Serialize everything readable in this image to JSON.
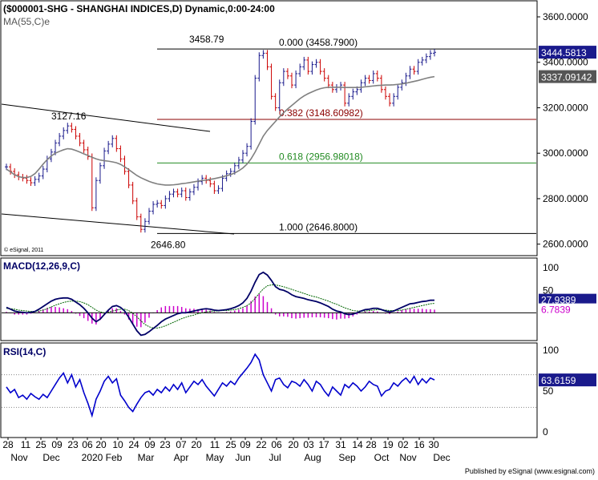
{
  "header": {
    "title": "($000001-SHG - SHANGHAI INDICES,D) Dynamic,0:00-24:00",
    "ma_label": "MA(55,C)e",
    "watermark": "© eSignal, 2011"
  },
  "chart_data": [
    {
      "type": "ohlc",
      "title": "($000001-SHG - SHANGHAI INDICES,D) Dynamic,0:00-24:00",
      "ylim": [
        2560,
        3660
      ],
      "y_ticks": [
        "3600.0000",
        "3400.0000",
        "3200.0000",
        "3000.0000",
        "2800.0000",
        "2600.0000"
      ],
      "y_tick_values": [
        3600,
        3400,
        3200,
        3000,
        2800,
        2600
      ],
      "price_badges": [
        {
          "label": "3444.5813",
          "value": 3444.58,
          "color": "#1a1a8c"
        },
        {
          "label": "3337.09142",
          "value": 3337.09,
          "color": "#555555"
        }
      ],
      "fib_levels": [
        {
          "label": "0.000 (3458.7900)",
          "value": 3458.79,
          "color": "#000000"
        },
        {
          "label": "0.382 (3148.60982)",
          "value": 3148.61,
          "color": "#8b0000"
        },
        {
          "label": "0.618 (2956.98018)",
          "value": 2956.98,
          "color": "#228b22"
        },
        {
          "label": "1.000 (2646.8000)",
          "value": 2646.8,
          "color": "#000000"
        }
      ],
      "annotations": [
        {
          "text": "3458.79",
          "value": 3458.79
        },
        {
          "text": "3127.16",
          "value": 3127.16
        },
        {
          "text": "2646.80",
          "value": 2646.8
        }
      ],
      "series": [
        {
          "name": "SHCOMP close",
          "color_up": "#1a1a8c",
          "color_down": "#cc0000",
          "values": [
            2940,
            2920,
            2905,
            2895,
            2890,
            2880,
            2870,
            2885,
            2900,
            2930,
            2975,
            3005,
            3045,
            3075,
            3100,
            3120,
            3105,
            3075,
            3045,
            3015,
            2985,
            2760,
            2880,
            2945,
            3010,
            3040,
            3065,
            3020,
            2975,
            2920,
            2860,
            2790,
            2720,
            2665,
            2700,
            2745,
            2775,
            2780,
            2770,
            2800,
            2820,
            2830,
            2820,
            2835,
            2805,
            2830,
            2850,
            2875,
            2890,
            2880,
            2865,
            2835,
            2845,
            2890,
            2910,
            2920,
            2945,
            2970,
            3000,
            3030,
            3140,
            3330,
            3430,
            3440,
            3380,
            3250,
            3200,
            3310,
            3360,
            3340,
            3300,
            3350,
            3380,
            3410,
            3360,
            3390,
            3400,
            3360,
            3330,
            3300,
            3280,
            3290,
            3300,
            3220,
            3250,
            3270,
            3280,
            3310,
            3330,
            3320,
            3350,
            3330,
            3280,
            3250,
            3220,
            3250,
            3290,
            3310,
            3340,
            3370,
            3360,
            3400,
            3410,
            3425,
            3440,
            3444
          ]
        },
        {
          "name": "MA(55,C)e",
          "color": "#808080",
          "values": [
            2930,
            2918,
            2905,
            2897,
            2893,
            2893,
            2898,
            2910,
            2930,
            2952,
            2972,
            2988,
            3000,
            3008,
            3015,
            3020,
            3018,
            3012,
            3005,
            2997,
            2990,
            2982,
            2975,
            2970,
            2967,
            2965,
            2962,
            2958,
            2951,
            2940,
            2928,
            2915,
            2902,
            2892,
            2884,
            2876,
            2870,
            2865,
            2862,
            2860,
            2860,
            2861,
            2863,
            2866,
            2868,
            2871,
            2874,
            2877,
            2880,
            2882,
            2885,
            2888,
            2892,
            2896,
            2901,
            2906,
            2913,
            2923,
            2935,
            2952,
            2975,
            3005,
            3040,
            3075,
            3100,
            3120,
            3140,
            3160,
            3178,
            3195,
            3210,
            3225,
            3240,
            3252,
            3262,
            3270,
            3278,
            3284,
            3288,
            3290,
            3290,
            3290,
            3290,
            3289,
            3289,
            3289,
            3289,
            3290,
            3292,
            3294,
            3296,
            3298,
            3299,
            3300,
            3300,
            3301,
            3303,
            3305,
            3308,
            3312,
            3316,
            3320,
            3325,
            3330,
            3334,
            3337
          ]
        }
      ]
    },
    {
      "type": "macd",
      "title": "MACD(12,26,9,C)",
      "ylim": [
        -60,
        120
      ],
      "y_ticks": [
        "100",
        "50"
      ],
      "y_tick_values": [
        100,
        50
      ],
      "badges": [
        {
          "label": "27.9389",
          "color": "#1a1a8c"
        },
        {
          "label": "6.7839",
          "color": "#cc00cc"
        }
      ],
      "series": [
        {
          "name": "MACD",
          "color": "#000066",
          "values": [
            12,
            8,
            4,
            2,
            1,
            0,
            1,
            3,
            8,
            14,
            20,
            26,
            30,
            32,
            33,
            33,
            30,
            24,
            18,
            10,
            0,
            -12,
            -20,
            -14,
            -4,
            6,
            14,
            16,
            12,
            4,
            -10,
            -25,
            -40,
            -50,
            -48,
            -42,
            -35,
            -28,
            -20,
            -14,
            -10,
            -6,
            -2,
            0,
            0,
            2,
            4,
            6,
            8,
            9,
            8,
            6,
            5,
            6,
            7,
            9,
            12,
            16,
            22,
            32,
            48,
            68,
            85,
            90,
            84,
            72,
            58,
            52,
            50,
            46,
            40,
            36,
            34,
            32,
            29,
            27,
            25,
            22,
            18,
            14,
            8,
            4,
            2,
            -2,
            -4,
            -3,
            0,
            4,
            7,
            8,
            10,
            10,
            7,
            4,
            2,
            4,
            8,
            12,
            16,
            20,
            21,
            23,
            25,
            26,
            27.9,
            28
          ]
        },
        {
          "name": "Signal",
          "color": "#006600",
          "values": [
            10,
            9,
            8,
            6,
            5,
            4,
            3,
            3,
            4,
            6,
            9,
            13,
            17,
            20,
            23,
            25,
            26,
            26,
            25,
            22,
            18,
            12,
            6,
            2,
            0,
            1,
            4,
            6,
            8,
            8,
            5,
            -1,
            -9,
            -18,
            -26,
            -31,
            -34,
            -34,
            -32,
            -29,
            -25,
            -21,
            -17,
            -13,
            -10,
            -7,
            -5,
            -2,
            0,
            2,
            3,
            4,
            4,
            5,
            5,
            6,
            7,
            9,
            12,
            16,
            22,
            32,
            43,
            53,
            60,
            62,
            62,
            60,
            58,
            55,
            52,
            49,
            46,
            43,
            40,
            37,
            35,
            32,
            29,
            26,
            22,
            19,
            15,
            11,
            8,
            5,
            4,
            4,
            4,
            5,
            6,
            7,
            7,
            6,
            5,
            5,
            5,
            6,
            8,
            10,
            12,
            14,
            16,
            18,
            20,
            21
          ]
        }
      ]
    },
    {
      "type": "line",
      "title": "RSI(14,C)",
      "ylim": [
        0,
        100
      ],
      "y_ticks": [
        "100",
        "50",
        "0"
      ],
      "y_tick_values": [
        100,
        50,
        0
      ],
      "guides": [
        70,
        30
      ],
      "badges": [
        {
          "label": "63.6159",
          "color": "#1a1a8c"
        }
      ],
      "series": [
        {
          "name": "RSI(14,C)",
          "color": "#0000cc",
          "values": [
            55,
            48,
            52,
            42,
            45,
            40,
            47,
            43,
            40,
            46,
            42,
            50,
            58,
            66,
            72,
            60,
            70,
            55,
            64,
            48,
            35,
            20,
            40,
            50,
            62,
            68,
            60,
            65,
            45,
            38,
            30,
            25,
            34,
            42,
            48,
            50,
            45,
            52,
            48,
            55,
            50,
            58,
            52,
            60,
            48,
            55,
            62,
            58,
            64,
            56,
            50,
            44,
            52,
            60,
            56,
            62,
            58,
            66,
            72,
            78,
            85,
            95,
            88,
            70,
            60,
            50,
            64,
            66,
            58,
            54,
            62,
            60,
            56,
            64,
            58,
            50,
            62,
            58,
            50,
            44,
            55,
            50,
            45,
            58,
            54,
            60,
            56,
            50,
            55,
            62,
            58,
            56,
            44,
            50,
            52,
            60,
            56,
            62,
            66,
            60,
            68,
            58,
            65,
            60,
            66,
            63.6
          ]
        }
      ]
    }
  ],
  "x_axis": {
    "day_labels": [
      "28",
      "11",
      "25",
      "09",
      "23",
      "06",
      "20",
      "10",
      "24",
      "09",
      "23",
      "07",
      "20",
      "11",
      "25",
      "09",
      "22",
      "06",
      "20",
      "03",
      "17",
      "31",
      "14",
      "28",
      "19",
      "02",
      "16",
      "30"
    ],
    "month_labels": [
      "Nov",
      "Dec",
      "2020 Feb",
      "Mar",
      "Apr",
      "May",
      "Jun",
      "Jul",
      "Aug",
      "Sep",
      "Oct",
      "Nov",
      "Dec"
    ]
  },
  "footer": {
    "credit": "Published by eSignal (www.esignal.com)"
  }
}
